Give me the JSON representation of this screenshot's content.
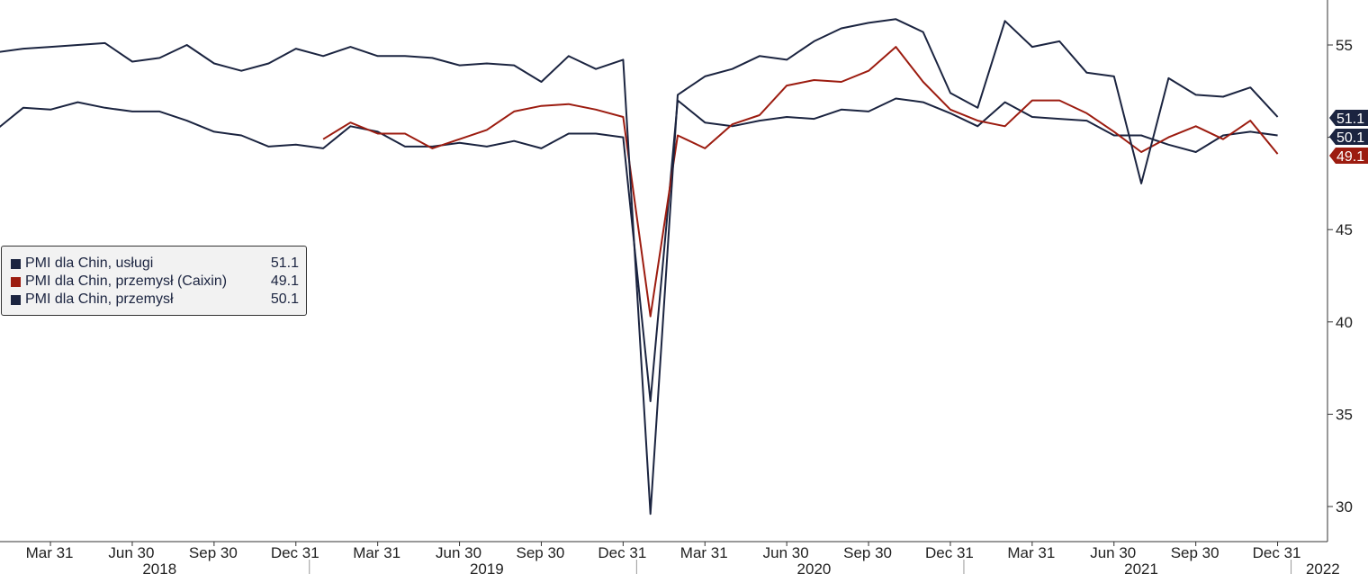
{
  "chart_data": {
    "type": "line",
    "title": "",
    "xlabel": "",
    "ylabel": "",
    "ylim": [
      28.2,
      57.5
    ],
    "y_ticks": [
      30,
      35,
      40,
      45,
      50,
      55
    ],
    "x_tick_labels": [
      "Mar 31",
      "Jun 30",
      "Sep 30",
      "Dec 31",
      "Mar 31",
      "Jun 30",
      "Sep 30",
      "Dec 31",
      "Mar 31",
      "Jun 30",
      "Sep 30",
      "Dec 31",
      "Mar 31",
      "Jun 30",
      "Sep 30",
      "Dec 31"
    ],
    "x_tick_months": [
      "2018-03",
      "2018-06",
      "2018-09",
      "2018-12",
      "2019-03",
      "2019-06",
      "2019-09",
      "2019-12",
      "2020-03",
      "2020-06",
      "2020-09",
      "2020-12",
      "2021-03",
      "2021-06",
      "2021-09",
      "2021-12"
    ],
    "year_labels": [
      "2018",
      "2019",
      "2020",
      "2021",
      "2022"
    ],
    "year_label_months": [
      "2018-07",
      "2019-07",
      "2020-07",
      "2021-07",
      "2022-01"
    ],
    "x_months": [
      "2018-01",
      "2018-02",
      "2018-03",
      "2018-04",
      "2018-05",
      "2018-06",
      "2018-07",
      "2018-08",
      "2018-09",
      "2018-10",
      "2018-11",
      "2018-12",
      "2019-01",
      "2019-02",
      "2019-03",
      "2019-04",
      "2019-05",
      "2019-06",
      "2019-07",
      "2019-08",
      "2019-09",
      "2019-10",
      "2019-11",
      "2019-12",
      "2020-01",
      "2020-02",
      "2020-03",
      "2020-04",
      "2020-05",
      "2020-06",
      "2020-07",
      "2020-08",
      "2020-09",
      "2020-10",
      "2020-11",
      "2020-12",
      "2021-01",
      "2021-02",
      "2021-03",
      "2021-04",
      "2021-05",
      "2021-06",
      "2021-07",
      "2021-08",
      "2021-09",
      "2021-10",
      "2021-11",
      "2021-12",
      "2022-01"
    ],
    "series": [
      {
        "name": "PMI dla Chin, usługi",
        "last_value": "51.1",
        "color": "#1b2440",
        "values": [
          54.6,
          54.8,
          54.9,
          55.0,
          55.1,
          54.1,
          54.3,
          55.0,
          54.0,
          53.6,
          54.0,
          54.8,
          54.4,
          54.9,
          54.4,
          54.4,
          54.3,
          53.9,
          54.0,
          53.9,
          53.0,
          54.4,
          53.7,
          54.2,
          29.6,
          52.3,
          53.3,
          53.7,
          54.4,
          54.2,
          55.2,
          55.9,
          56.2,
          56.4,
          55.7,
          52.4,
          51.6,
          56.3,
          54.9,
          55.2,
          53.5,
          53.3,
          47.5,
          53.2,
          52.3,
          52.2,
          52.7,
          51.1,
          51.1
        ],
        "draw_from": 0
      },
      {
        "name": "PMI dla Chin, przemysł (Caixin)",
        "last_value": "49.1",
        "color": "#9c1c10",
        "values": [
          null,
          null,
          null,
          null,
          null,
          null,
          null,
          null,
          null,
          null,
          null,
          null,
          49.9,
          50.8,
          50.2,
          50.2,
          49.4,
          49.9,
          50.4,
          51.4,
          51.7,
          51.8,
          51.5,
          51.1,
          40.3,
          50.1,
          49.4,
          50.7,
          51.2,
          52.8,
          53.1,
          53.0,
          53.6,
          54.9,
          53.0,
          51.5,
          50.9,
          50.6,
          52.0,
          52.0,
          51.3,
          50.3,
          49.2,
          50.0,
          50.6,
          49.9,
          50.9,
          49.1,
          49.1
        ],
        "draw_from": 12
      },
      {
        "name": "PMI dla Chin, przemysł",
        "last_value": "50.1",
        "color": "#1b2440",
        "values": [
          50.4,
          51.6,
          51.5,
          51.9,
          51.6,
          51.4,
          51.4,
          50.9,
          50.3,
          50.1,
          49.5,
          49.6,
          49.4,
          50.6,
          50.3,
          49.5,
          49.5,
          49.7,
          49.5,
          49.8,
          49.4,
          50.2,
          50.2,
          50.0,
          35.7,
          52.0,
          50.8,
          50.6,
          50.9,
          51.1,
          51.0,
          51.5,
          51.4,
          52.1,
          51.9,
          51.3,
          50.6,
          51.9,
          51.1,
          51.0,
          50.9,
          50.1,
          50.1,
          49.6,
          49.2,
          50.1,
          50.3,
          50.1,
          50.1
        ],
        "draw_from": 0
      }
    ],
    "legend_position": "left-middle",
    "grid": false
  }
}
